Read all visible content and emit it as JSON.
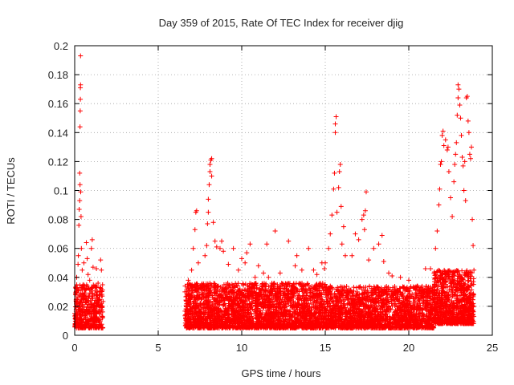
{
  "chart_data": {
    "type": "scatter",
    "title": "Day 359 of 2015, Rate Of TEC Index for receiver djig",
    "xlabel": "GPS time / hours",
    "ylabel": "ROTI / TECUs",
    "xlim": [
      0,
      25
    ],
    "ylim": [
      0,
      0.2
    ],
    "xticks": [
      0,
      5,
      10,
      15,
      20,
      25
    ],
    "yticks": [
      0,
      0.02,
      0.04,
      0.06,
      0.08,
      0.1,
      0.12,
      0.14,
      0.16,
      0.18,
      0.2
    ],
    "xtick_labels": [
      "0",
      "5",
      "10",
      "15",
      "20",
      "25"
    ],
    "ytick_labels": [
      "0",
      "0.02",
      "0.04",
      "0.06",
      "0.08",
      "0.1",
      "0.12",
      "0.14",
      "0.16",
      "0.18",
      "0.2"
    ],
    "grid": true,
    "marker": "+",
    "color": "#ff0000",
    "series": [
      {
        "name": "ROTI",
        "points": [
          [
            0.05,
            0.012
          ],
          [
            0.1,
            0.025
          ],
          [
            0.12,
            0.04
          ],
          [
            0.15,
            0.033
          ],
          [
            0.18,
            0.021
          ],
          [
            0.2,
            0.049
          ],
          [
            0.22,
            0.055
          ],
          [
            0.25,
            0.076
          ],
          [
            0.27,
            0.087
          ],
          [
            0.3,
            0.093
          ],
          [
            0.3,
            0.112
          ],
          [
            0.32,
            0.104
          ],
          [
            0.32,
            0.144
          ],
          [
            0.33,
            0.155
          ],
          [
            0.34,
            0.163
          ],
          [
            0.34,
            0.171
          ],
          [
            0.35,
            0.173
          ],
          [
            0.35,
            0.193
          ],
          [
            0.36,
            0.099
          ],
          [
            0.38,
            0.082
          ],
          [
            0.4,
            0.06
          ],
          [
            0.45,
            0.045
          ],
          [
            0.5,
            0.035
          ],
          [
            0.55,
            0.05
          ],
          [
            0.6,
            0.028
          ],
          [
            0.7,
            0.064
          ],
          [
            0.75,
            0.053
          ],
          [
            0.8,
            0.042
          ],
          [
            0.9,
            0.038
          ],
          [
            1.0,
            0.06
          ],
          [
            1.05,
            0.066
          ],
          [
            1.1,
            0.047
          ],
          [
            1.2,
            0.034
          ],
          [
            1.3,
            0.046
          ],
          [
            1.4,
            0.036
          ],
          [
            1.5,
            0.028
          ],
          [
            1.55,
            0.052
          ],
          [
            1.6,
            0.045
          ],
          [
            1.65,
            0.02
          ],
          [
            6.6,
            0.03
          ],
          [
            6.8,
            0.038
          ],
          [
            7.0,
            0.045
          ],
          [
            7.1,
            0.06
          ],
          [
            7.2,
            0.073
          ],
          [
            7.25,
            0.085
          ],
          [
            7.3,
            0.086
          ],
          [
            7.4,
            0.05
          ],
          [
            7.6,
            0.035
          ],
          [
            7.8,
            0.055
          ],
          [
            7.9,
            0.062
          ],
          [
            7.95,
            0.077
          ],
          [
            8.0,
            0.085
          ],
          [
            8.0,
            0.094
          ],
          [
            8.05,
            0.104
          ],
          [
            8.1,
            0.113
          ],
          [
            8.1,
            0.118
          ],
          [
            8.15,
            0.121
          ],
          [
            8.2,
            0.122
          ],
          [
            8.2,
            0.11
          ],
          [
            8.3,
            0.078
          ],
          [
            8.4,
            0.065
          ],
          [
            8.5,
            0.061
          ],
          [
            8.7,
            0.06
          ],
          [
            8.8,
            0.065
          ],
          [
            8.9,
            0.058
          ],
          [
            9.2,
            0.049
          ],
          [
            9.5,
            0.06
          ],
          [
            9.8,
            0.045
          ],
          [
            10.0,
            0.053
          ],
          [
            10.2,
            0.05
          ],
          [
            10.3,
            0.057
          ],
          [
            10.5,
            0.063
          ],
          [
            10.8,
            0.04
          ],
          [
            11.0,
            0.048
          ],
          [
            11.3,
            0.043
          ],
          [
            11.5,
            0.063
          ],
          [
            11.6,
            0.04
          ],
          [
            12.0,
            0.072
          ],
          [
            12.3,
            0.043
          ],
          [
            12.8,
            0.065
          ],
          [
            13.2,
            0.048
          ],
          [
            13.3,
            0.055
          ],
          [
            13.6,
            0.045
          ],
          [
            14.0,
            0.06
          ],
          [
            14.3,
            0.045
          ],
          [
            14.5,
            0.042
          ],
          [
            14.8,
            0.05
          ],
          [
            14.95,
            0.046
          ],
          [
            15.0,
            0.05
          ],
          [
            15.2,
            0.06
          ],
          [
            15.3,
            0.07
          ],
          [
            15.4,
            0.083
          ],
          [
            15.5,
            0.101
          ],
          [
            15.55,
            0.112
          ],
          [
            15.6,
            0.14
          ],
          [
            15.6,
            0.146
          ],
          [
            15.65,
            0.151
          ],
          [
            15.7,
            0.085
          ],
          [
            15.8,
            0.102
          ],
          [
            15.85,
            0.113
          ],
          [
            15.9,
            0.118
          ],
          [
            15.95,
            0.089
          ],
          [
            16.0,
            0.063
          ],
          [
            16.1,
            0.075
          ],
          [
            16.2,
            0.055
          ],
          [
            16.6,
            0.055
          ],
          [
            16.8,
            0.07
          ],
          [
            17.0,
            0.066
          ],
          [
            17.2,
            0.08
          ],
          [
            17.3,
            0.083
          ],
          [
            17.35,
            0.073
          ],
          [
            17.4,
            0.086
          ],
          [
            17.45,
            0.099
          ],
          [
            17.6,
            0.052
          ],
          [
            17.9,
            0.06
          ],
          [
            18.2,
            0.063
          ],
          [
            18.4,
            0.069
          ],
          [
            18.5,
            0.051
          ],
          [
            18.8,
            0.043
          ],
          [
            19.0,
            0.041
          ],
          [
            19.5,
            0.04
          ],
          [
            20.0,
            0.038
          ],
          [
            20.5,
            0.034
          ],
          [
            21.0,
            0.046
          ],
          [
            21.3,
            0.046
          ],
          [
            21.6,
            0.06
          ],
          [
            21.7,
            0.072
          ],
          [
            21.8,
            0.09
          ],
          [
            21.85,
            0.101
          ],
          [
            21.9,
            0.118
          ],
          [
            21.95,
            0.12
          ],
          [
            22.0,
            0.138
          ],
          [
            22.05,
            0.141
          ],
          [
            22.1,
            0.131
          ],
          [
            22.2,
            0.135
          ],
          [
            22.3,
            0.128
          ],
          [
            22.35,
            0.13
          ],
          [
            22.4,
            0.113
          ],
          [
            22.5,
            0.095
          ],
          [
            22.6,
            0.082
          ],
          [
            22.7,
            0.106
          ],
          [
            22.75,
            0.118
          ],
          [
            22.8,
            0.125
          ],
          [
            22.85,
            0.133
          ],
          [
            22.9,
            0.152
          ],
          [
            22.95,
            0.164
          ],
          [
            22.95,
            0.173
          ],
          [
            23.0,
            0.17
          ],
          [
            23.05,
            0.159
          ],
          [
            23.1,
            0.15
          ],
          [
            23.15,
            0.138
          ],
          [
            23.2,
            0.123
          ],
          [
            23.25,
            0.117
          ],
          [
            23.3,
            0.1
          ],
          [
            23.35,
            0.12
          ],
          [
            23.4,
            0.093
          ],
          [
            23.45,
            0.164
          ],
          [
            23.5,
            0.165
          ],
          [
            23.55,
            0.148
          ],
          [
            23.6,
            0.14
          ],
          [
            23.65,
            0.125
          ],
          [
            23.7,
            0.122
          ],
          [
            23.75,
            0.13
          ],
          [
            23.8,
            0.08
          ],
          [
            23.85,
            0.062
          ],
          [
            23.9,
            0.045
          ]
        ],
        "bands": [
          {
            "x_start": 0.0,
            "x_end": 1.7,
            "y_min": 0.005,
            "y_max": 0.035,
            "count": 420
          },
          {
            "x_start": 6.6,
            "x_end": 15.0,
            "y_min": 0.005,
            "y_max": 0.036,
            "count": 2600
          },
          {
            "x_start": 15.0,
            "x_end": 21.5,
            "y_min": 0.005,
            "y_max": 0.034,
            "count": 1900
          },
          {
            "x_start": 21.5,
            "x_end": 23.9,
            "y_min": 0.008,
            "y_max": 0.045,
            "count": 900
          }
        ]
      }
    ]
  }
}
